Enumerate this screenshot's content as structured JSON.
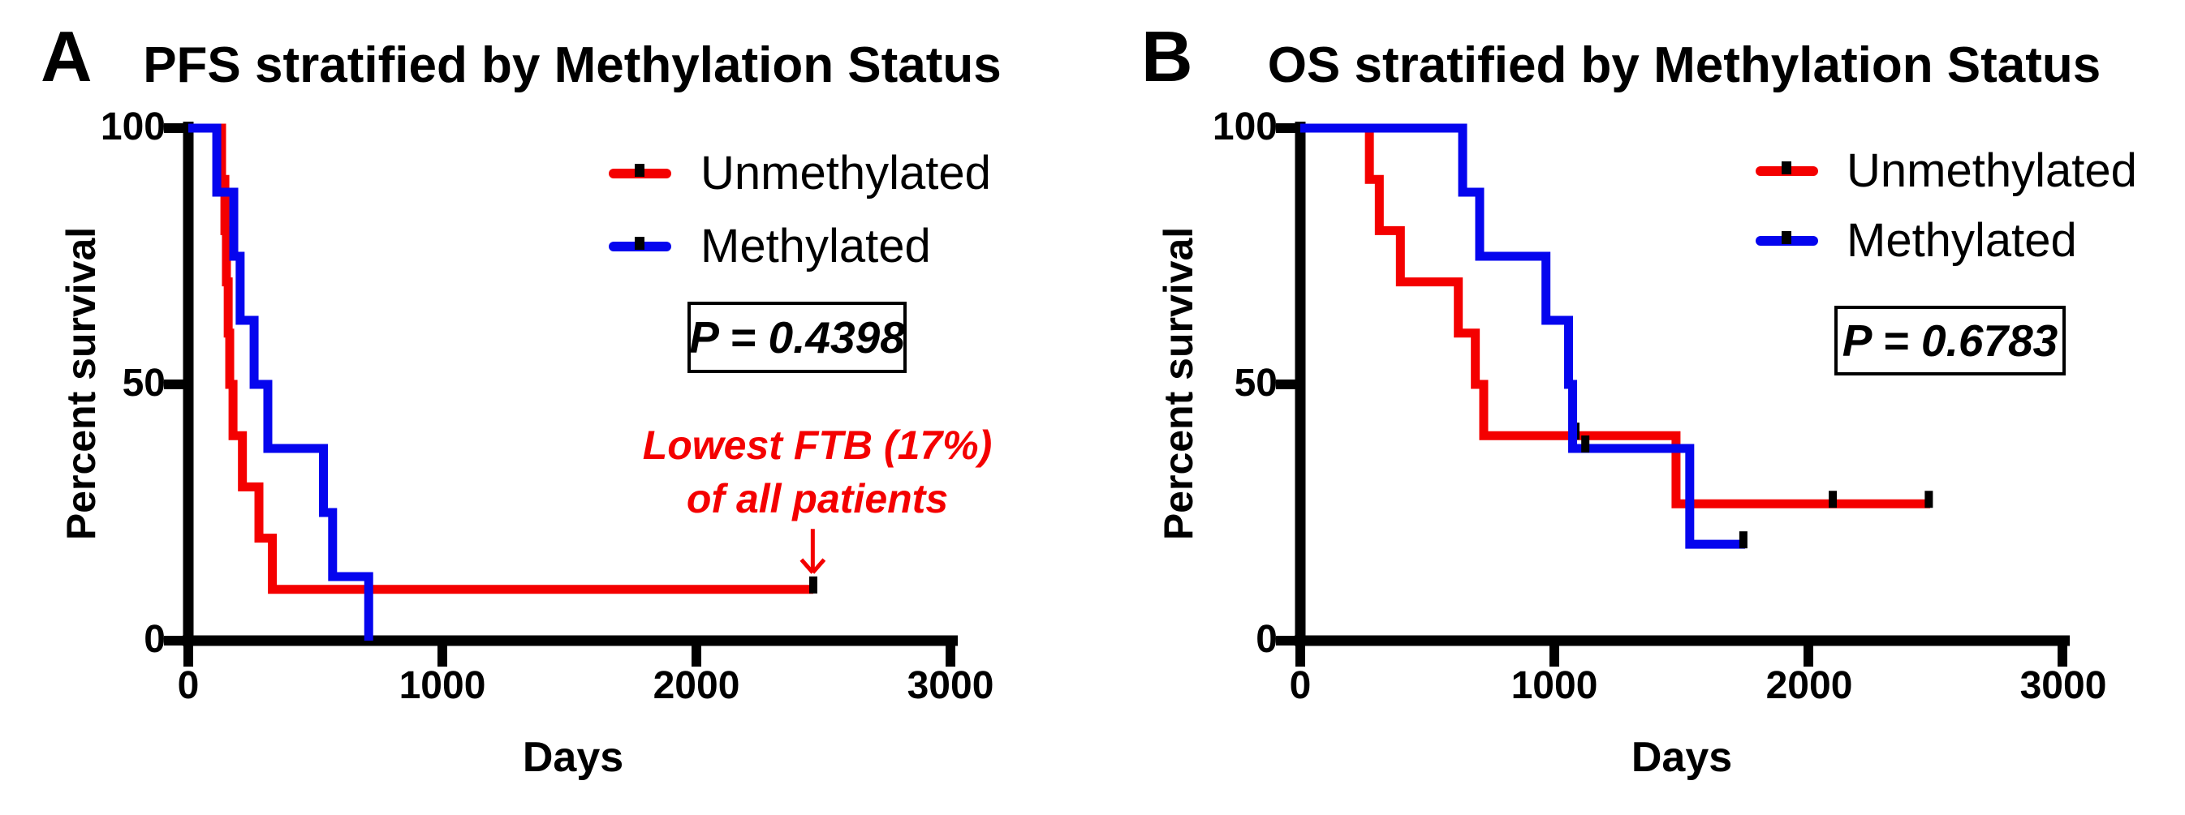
{
  "figure": {
    "background": "#ffffff",
    "text_color": "#000000"
  },
  "colors": {
    "unmethylated": "#f40000",
    "methylated": "#0505ee",
    "axis": "#000000",
    "annotation_red": "#f40000"
  },
  "panels": [
    {
      "letter": "A",
      "title": "PFS stratified by Methylation Status",
      "p_value": "P = 0.4398",
      "x_axis": {
        "label": "Days",
        "ticks": [
          "0",
          "1000",
          "2000",
          "3000"
        ]
      },
      "y_axis": {
        "label": "Percent survival",
        "ticks": [
          "100",
          "50",
          "0"
        ]
      },
      "legend": [
        {
          "label": "Unmethylated"
        },
        {
          "label": "Methylated"
        }
      ],
      "annotation": {
        "line1": "Lowest FTB (17%)",
        "line2": "of all patients"
      }
    },
    {
      "letter": "B",
      "title": "OS stratified by Methylation Status",
      "p_value": "P = 0.6783",
      "x_axis": {
        "label": "Days",
        "ticks": [
          "0",
          "1000",
          "2000",
          "3000"
        ]
      },
      "y_axis": {
        "label": "Percent survival",
        "ticks": [
          "100",
          "50",
          "0"
        ]
      },
      "legend": [
        {
          "label": "Unmethylated"
        },
        {
          "label": "Methylated"
        }
      ]
    }
  ],
  "chart_data": [
    {
      "type": "line",
      "subtype": "kaplan-meier-step",
      "title": "PFS stratified by Methylation Status",
      "xlabel": "Days",
      "ylabel": "Percent survival",
      "xlim": [
        0,
        3000
      ],
      "ylim": [
        0,
        100
      ],
      "xticks": [
        0,
        1000,
        2000,
        3000
      ],
      "yticks": [
        0,
        50,
        100
      ],
      "grid": false,
      "legend_position": "top-right",
      "p_value": "P = 0.4398",
      "series": [
        {
          "name": "Unmethylated",
          "color": "#f40000",
          "steps": [
            [
              0,
              100
            ],
            [
              131,
              90
            ],
            [
              144,
              80
            ],
            [
              150,
              70
            ],
            [
              157,
              60
            ],
            [
              163,
              50
            ],
            [
              176,
              40
            ],
            [
              213,
              30
            ],
            [
              278,
              20
            ],
            [
              331,
              10
            ]
          ],
          "end_day": 2460,
          "censor_marks": [
            [
              2460,
              10
            ]
          ]
        },
        {
          "name": "Methylated",
          "color": "#0505ee",
          "steps": [
            [
              0,
              100
            ],
            [
              112,
              87.5
            ],
            [
              179,
              75
            ],
            [
              204,
              62.5
            ],
            [
              259,
              50
            ],
            [
              313,
              37.5
            ],
            [
              532,
              25
            ],
            [
              568,
              12.5
            ],
            [
              710,
              0
            ]
          ],
          "end_day": 710,
          "censor_marks": []
        }
      ],
      "annotation": {
        "text": [
          "Lowest FTB (17%)",
          "of all patients"
        ],
        "color": "#f40000",
        "arrow_day": 2458,
        "arrow_from_pct": 21.8,
        "arrow_to_pct": 13.6
      }
    },
    {
      "type": "line",
      "subtype": "kaplan-meier-step",
      "title": "OS stratified by Methylation Status",
      "xlabel": "Days",
      "ylabel": "Percent survival",
      "xlim": [
        0,
        3000
      ],
      "ylim": [
        0,
        100
      ],
      "xticks": [
        0,
        1000,
        2000,
        3000
      ],
      "yticks": [
        0,
        50,
        100
      ],
      "grid": false,
      "legend_position": "top-right",
      "p_value": "P = 0.6783",
      "series": [
        {
          "name": "Unmethylated",
          "color": "#f40000",
          "steps": [
            [
              0,
              100
            ],
            [
              272,
              90
            ],
            [
              311,
              80
            ],
            [
              394,
              70
            ],
            [
              622,
              60
            ],
            [
              689,
              50
            ],
            [
              722,
              40
            ],
            [
              1479,
              26.7
            ]
          ],
          "end_day": 2479,
          "censor_marks": [
            [
              1083,
              40
            ],
            [
              2096,
              26.7
            ],
            [
              2474,
              26.7
            ]
          ]
        },
        {
          "name": "Methylated",
          "color": "#0505ee",
          "steps": [
            [
              0,
              100
            ],
            [
              639,
              87.5
            ],
            [
              706,
              75
            ],
            [
              967,
              62.5
            ],
            [
              1056,
              50
            ],
            [
              1072,
              37.5
            ],
            [
              1533,
              18.8
            ]
          ],
          "end_day": 1751,
          "censor_marks": [
            [
              1122,
              37.5
            ],
            [
              1744,
              18.8
            ]
          ]
        }
      ]
    }
  ]
}
